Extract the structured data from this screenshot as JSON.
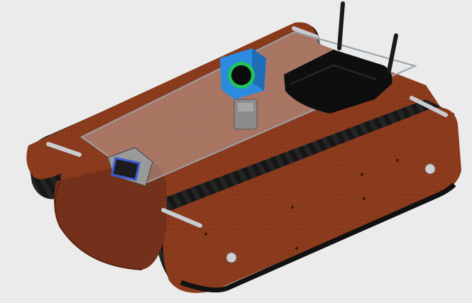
{
  "scene": {
    "subject": "tracked-robot-render",
    "colors": {
      "background": "#ebebeb",
      "wood": "#8a3a1c",
      "wood_dark": "#6a2a12",
      "wood_light": "#a04a26",
      "track": "#161616",
      "track_tread": "#2a2a2a",
      "camera_body": "#2b8be0",
      "camera_ring": "#22c35c",
      "antenna": "#1a1a1a",
      "glass_plate": "#d8dde2",
      "axle": "#c8ccd0"
    }
  }
}
